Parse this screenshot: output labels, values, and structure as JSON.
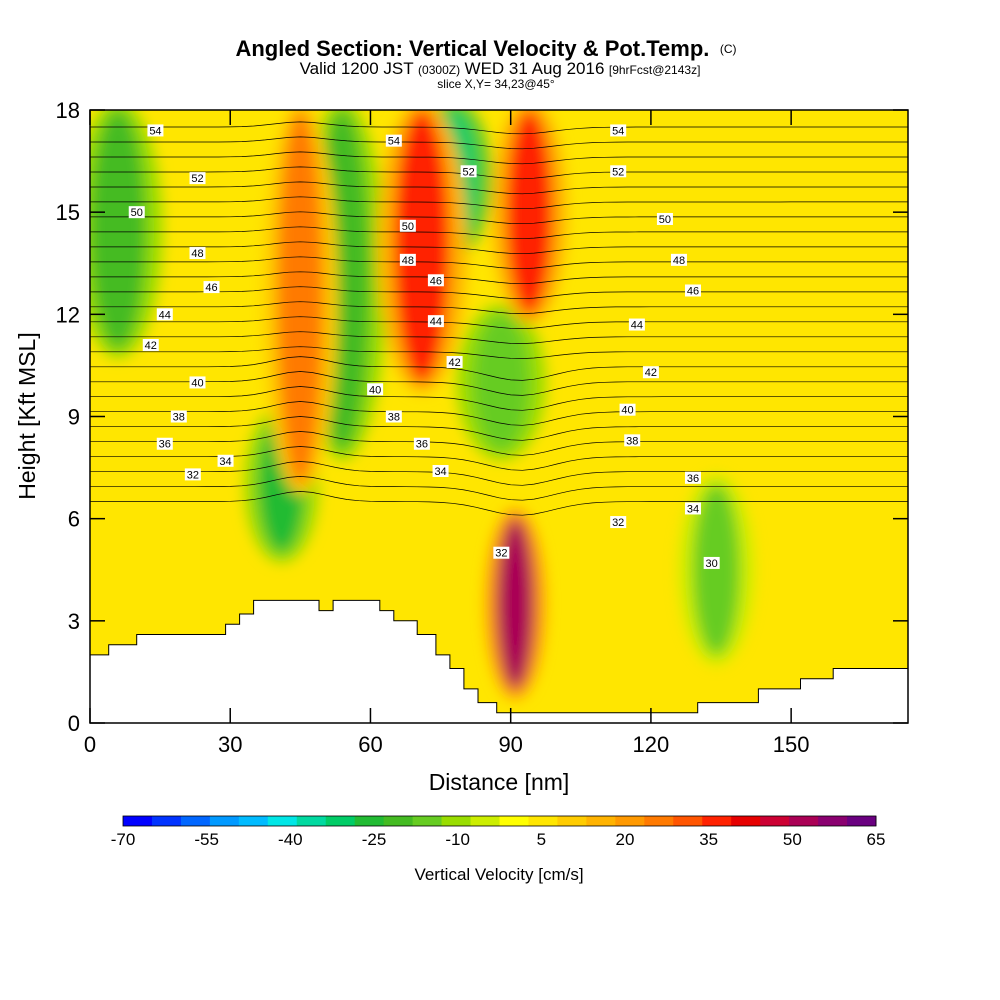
{
  "chart_data": {
    "type": "heatmap",
    "title": "Angled Section: Vertical Velocity & Pot.Temp.",
    "title_unit": "(C)",
    "subtitle_prefix": "Valid 1200 JST",
    "subtitle_utc": "(0300Z)",
    "subtitle_date": "WED 31 Aug 2016",
    "subtitle_forecast": "[9hrFcst@2143z]",
    "slice_text": "slice X,Y= 34,23@45°",
    "xlabel": "Distance [nm]",
    "ylabel": "Height [Kft MSL]",
    "xlim": [
      0,
      175
    ],
    "ylim": [
      0,
      18
    ],
    "x_ticks": [
      0,
      30,
      60,
      90,
      120,
      150
    ],
    "y_ticks": [
      0,
      3,
      6,
      9,
      12,
      15,
      18
    ],
    "colorbar": {
      "label": "Vertical Velocity [cm/s]",
      "min": -70,
      "max": 65,
      "ticks": [
        -70,
        -55,
        -40,
        -25,
        -10,
        5,
        20,
        35,
        50,
        65
      ],
      "colors": [
        "#0000ff",
        "#0033ff",
        "#0066ff",
        "#0099ff",
        "#00bbff",
        "#00e6e6",
        "#00d9a0",
        "#00cc66",
        "#22bb33",
        "#44bb22",
        "#66cc22",
        "#99dd00",
        "#ccee00",
        "#ffff00",
        "#ffe600",
        "#ffcc00",
        "#ffb300",
        "#ff9900",
        "#ff7a00",
        "#ff5500",
        "#ff2200",
        "#e60000",
        "#cc0033",
        "#aa0055",
        "#8a0070",
        "#6a0080"
      ]
    },
    "updraft_cores": [
      {
        "x": 45,
        "w": 5,
        "z0": 7,
        "z1": 18,
        "value": 28
      },
      {
        "x": 71,
        "w": 6,
        "z0": 10,
        "z1": 18,
        "value": 38
      },
      {
        "x": 94,
        "w": 5,
        "z0": 12,
        "z1": 18,
        "value": 38
      },
      {
        "x": 91,
        "w": 4,
        "z0": 1,
        "z1": 6,
        "value": 50
      }
    ],
    "downdraft_bands": [
      {
        "x": 6,
        "w": 6,
        "z0": 11,
        "z1": 18,
        "value": -20
      },
      {
        "x": 41,
        "w": 5,
        "z0": 5,
        "z1": 9,
        "value": -25
      },
      {
        "x": 54,
        "w": 6,
        "z0": 8,
        "z1": 18,
        "value": -22
      },
      {
        "x": 78,
        "w": 5,
        "z0": 14,
        "z1": 18,
        "value": -30
      },
      {
        "x": 88,
        "w": 6,
        "z0": 8,
        "z1": 12,
        "value": -18
      },
      {
        "x": 134,
        "w": 5,
        "z0": 2,
        "z1": 7,
        "value": -15
      }
    ],
    "isentrope_labels": [
      {
        "x": 14,
        "y": 17.4,
        "text": "54"
      },
      {
        "x": 23,
        "y": 16.0,
        "text": "52"
      },
      {
        "x": 10,
        "y": 15.0,
        "text": "50"
      },
      {
        "x": 23,
        "y": 13.8,
        "text": "48"
      },
      {
        "x": 26,
        "y": 12.8,
        "text": "46"
      },
      {
        "x": 16,
        "y": 12.0,
        "text": "44"
      },
      {
        "x": 13,
        "y": 11.1,
        "text": "42"
      },
      {
        "x": 23,
        "y": 10.0,
        "text": "40"
      },
      {
        "x": 19,
        "y": 9.0,
        "text": "38"
      },
      {
        "x": 16,
        "y": 8.2,
        "text": "36"
      },
      {
        "x": 29,
        "y": 7.7,
        "text": "34"
      },
      {
        "x": 22,
        "y": 7.3,
        "text": "32"
      },
      {
        "x": 65,
        "y": 17.1,
        "text": "54"
      },
      {
        "x": 81,
        "y": 16.2,
        "text": "52"
      },
      {
        "x": 68,
        "y": 14.6,
        "text": "50"
      },
      {
        "x": 68,
        "y": 13.6,
        "text": "48"
      },
      {
        "x": 74,
        "y": 13.0,
        "text": "46"
      },
      {
        "x": 74,
        "y": 11.8,
        "text": "44"
      },
      {
        "x": 78,
        "y": 10.6,
        "text": "42"
      },
      {
        "x": 61,
        "y": 9.8,
        "text": "40"
      },
      {
        "x": 65,
        "y": 9.0,
        "text": "38"
      },
      {
        "x": 71,
        "y": 8.2,
        "text": "36"
      },
      {
        "x": 75,
        "y": 7.4,
        "text": "34"
      },
      {
        "x": 88,
        "y": 5.0,
        "text": "32"
      },
      {
        "x": 113,
        "y": 17.4,
        "text": "54"
      },
      {
        "x": 113,
        "y": 16.2,
        "text": "52"
      },
      {
        "x": 123,
        "y": 14.8,
        "text": "50"
      },
      {
        "x": 126,
        "y": 13.6,
        "text": "48"
      },
      {
        "x": 129,
        "y": 12.7,
        "text": "46"
      },
      {
        "x": 117,
        "y": 11.7,
        "text": "44"
      },
      {
        "x": 120,
        "y": 10.3,
        "text": "42"
      },
      {
        "x": 115,
        "y": 9.2,
        "text": "40"
      },
      {
        "x": 116,
        "y": 8.3,
        "text": "38"
      },
      {
        "x": 129,
        "y": 7.2,
        "text": "36"
      },
      {
        "x": 129,
        "y": 6.3,
        "text": "34"
      },
      {
        "x": 113,
        "y": 5.9,
        "text": "32"
      },
      {
        "x": 133,
        "y": 4.7,
        "text": "30"
      }
    ],
    "terrain": [
      [
        0,
        2.0
      ],
      [
        4,
        2.0
      ],
      [
        4,
        2.3
      ],
      [
        10,
        2.3
      ],
      [
        10,
        2.6
      ],
      [
        29,
        2.6
      ],
      [
        29,
        2.9
      ],
      [
        32,
        2.9
      ],
      [
        32,
        3.2
      ],
      [
        35,
        3.2
      ],
      [
        35,
        3.6
      ],
      [
        49,
        3.6
      ],
      [
        49,
        3.3
      ],
      [
        52,
        3.3
      ],
      [
        52,
        3.6
      ],
      [
        62,
        3.6
      ],
      [
        62,
        3.3
      ],
      [
        65,
        3.3
      ],
      [
        65,
        3.0
      ],
      [
        70,
        3.0
      ],
      [
        70,
        2.6
      ],
      [
        74,
        2.6
      ],
      [
        74,
        2.0
      ],
      [
        77,
        2.0
      ],
      [
        77,
        1.6
      ],
      [
        80,
        1.6
      ],
      [
        80,
        1.0
      ],
      [
        83,
        1.0
      ],
      [
        83,
        0.6
      ],
      [
        87,
        0.6
      ],
      [
        87,
        0.3
      ],
      [
        130,
        0.3
      ],
      [
        130,
        0.6
      ],
      [
        143,
        0.6
      ],
      [
        143,
        1.0
      ],
      [
        152,
        1.0
      ],
      [
        152,
        1.3
      ],
      [
        159,
        1.3
      ],
      [
        159,
        1.6
      ],
      [
        175,
        1.6
      ]
    ]
  }
}
